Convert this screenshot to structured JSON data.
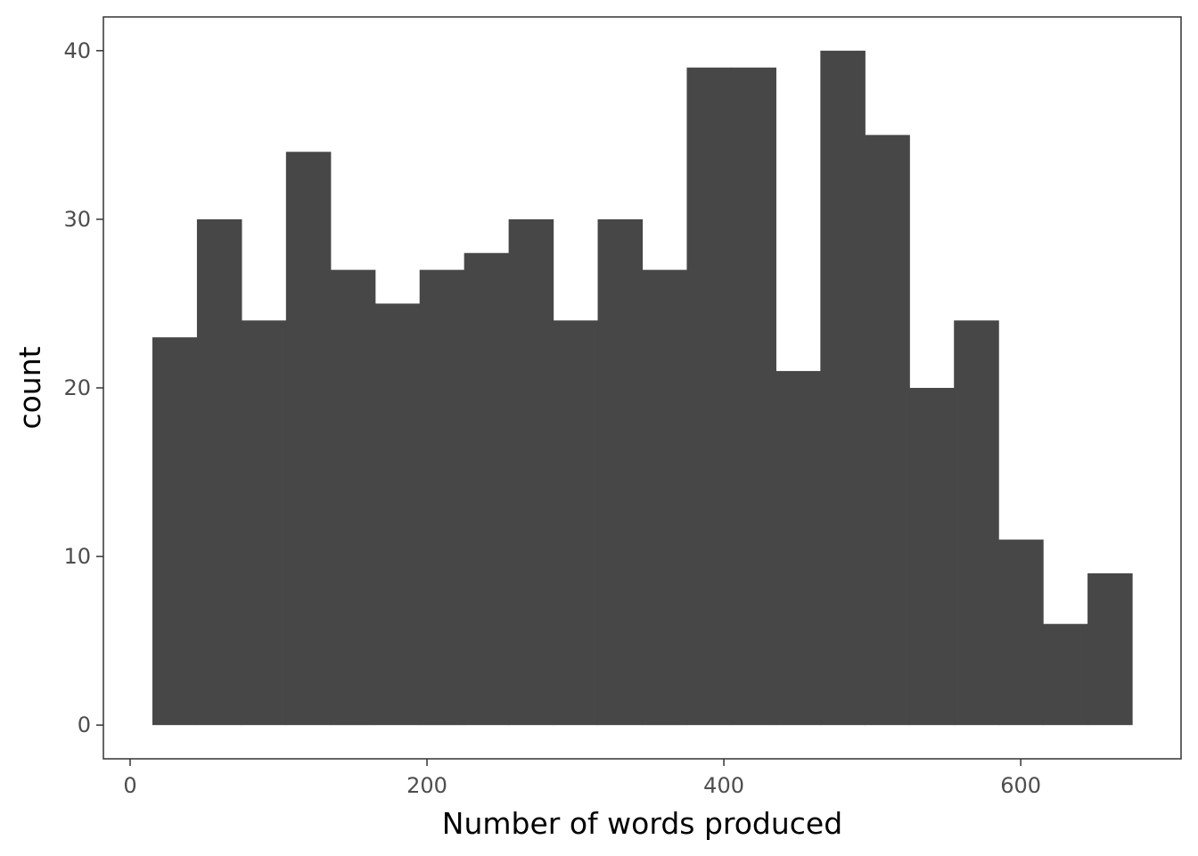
{
  "chart_data": {
    "type": "bar",
    "subtype": "histogram",
    "title": "",
    "xlabel": "Number of words produced",
    "ylabel": "count",
    "bin_width": 30,
    "bins": [
      {
        "x0": 15,
        "x1": 45,
        "count": 23
      },
      {
        "x0": 45,
        "x1": 75,
        "count": 30
      },
      {
        "x0": 75,
        "x1": 105,
        "count": 24
      },
      {
        "x0": 105,
        "x1": 135,
        "count": 34
      },
      {
        "x0": 135,
        "x1": 165,
        "count": 27
      },
      {
        "x0": 165,
        "x1": 195,
        "count": 25
      },
      {
        "x0": 195,
        "x1": 225,
        "count": 27
      },
      {
        "x0": 225,
        "x1": 255,
        "count": 28
      },
      {
        "x0": 255,
        "x1": 285,
        "count": 30
      },
      {
        "x0": 285,
        "x1": 315,
        "count": 24
      },
      {
        "x0": 315,
        "x1": 345,
        "count": 30
      },
      {
        "x0": 345,
        "x1": 375,
        "count": 27
      },
      {
        "x0": 375,
        "x1": 405,
        "count": 39
      },
      {
        "x0": 405,
        "x1": 435,
        "count": 39
      },
      {
        "x0": 435,
        "x1": 465,
        "count": 21
      },
      {
        "x0": 465,
        "x1": 495,
        "count": 40
      },
      {
        "x0": 495,
        "x1": 525,
        "count": 35
      },
      {
        "x0": 525,
        "x1": 555,
        "count": 20
      },
      {
        "x0": 555,
        "x1": 585,
        "count": 24
      },
      {
        "x0": 585,
        "x1": 615,
        "count": 11
      },
      {
        "x0": 615,
        "x1": 645,
        "count": 6
      },
      {
        "x0": 645,
        "x1": 675,
        "count": 9
      }
    ],
    "xlim": [
      -18,
      708
    ],
    "ylim": [
      -2,
      42
    ],
    "x_ticks": [
      0,
      200,
      400,
      600
    ],
    "y_ticks": [
      0,
      10,
      20,
      30,
      40
    ],
    "grid": false,
    "colors": {
      "bar_fill": "#474747",
      "panel_border": "#333333",
      "tick_text": "#4d4d4d",
      "axis_title": "#000000"
    }
  }
}
